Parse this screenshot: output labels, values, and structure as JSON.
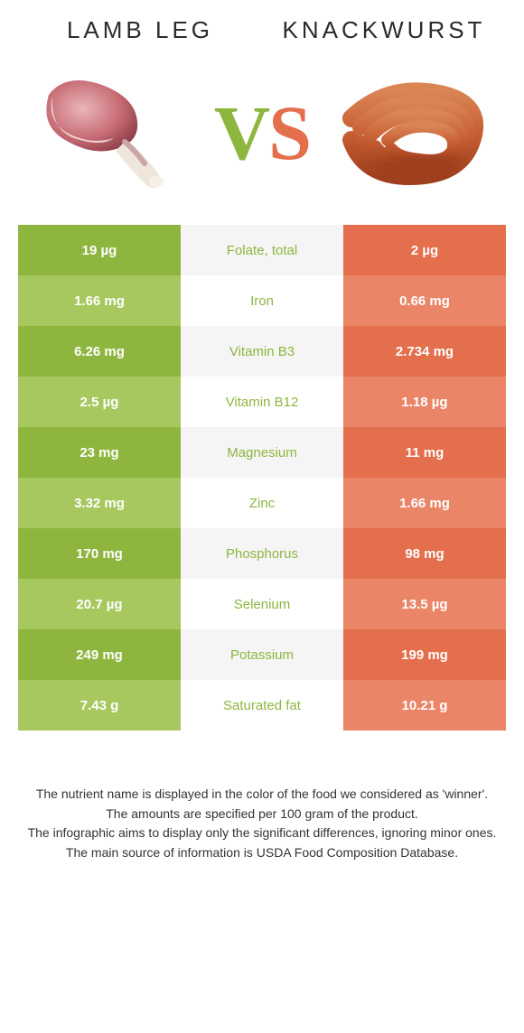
{
  "colors": {
    "food1": "#8eb63f",
    "food1_light": "#a6c85f",
    "food2": "#e36f4d",
    "food2_light": "#ea8567",
    "mid_a": "#f5f5f5",
    "mid_b": "#ffffff",
    "mid_text": "#8eb63f",
    "mid_text_alt": "#e36f4d",
    "title": "#2b2b2b",
    "body": "#333333"
  },
  "food1": {
    "name": "Lamb leg"
  },
  "food2": {
    "name": "Knackwurst"
  },
  "vs": {
    "v": "V",
    "s": "S"
  },
  "rows": [
    {
      "nutrient": "Folate, total",
      "left": "19 µg",
      "right": "2 µg",
      "winner": "food1"
    },
    {
      "nutrient": "Iron",
      "left": "1.66 mg",
      "right": "0.66 mg",
      "winner": "food1"
    },
    {
      "nutrient": "Vitamin B3",
      "left": "6.26 mg",
      "right": "2.734 mg",
      "winner": "food1"
    },
    {
      "nutrient": "Vitamin B12",
      "left": "2.5 µg",
      "right": "1.18 µg",
      "winner": "food1"
    },
    {
      "nutrient": "Magnesium",
      "left": "23 mg",
      "right": "11 mg",
      "winner": "food1"
    },
    {
      "nutrient": "Zinc",
      "left": "3.32 mg",
      "right": "1.66 mg",
      "winner": "food1"
    },
    {
      "nutrient": "Phosphorus",
      "left": "170 mg",
      "right": "98 mg",
      "winner": "food1"
    },
    {
      "nutrient": "Selenium",
      "left": "20.7 µg",
      "right": "13.5 µg",
      "winner": "food1"
    },
    {
      "nutrient": "Potassium",
      "left": "249 mg",
      "right": "199 mg",
      "winner": "food1"
    },
    {
      "nutrient": "Saturated fat",
      "left": "7.43 g",
      "right": "10.21 g",
      "winner": "food1"
    }
  ],
  "footer": {
    "line1": "The nutrient name is displayed in the color of the food we considered as 'winner'.",
    "line2": "The amounts are specified per 100 gram of the product.",
    "line3": "The infographic aims to display only the significant differences, ignoring minor ones.",
    "line4": "The main source of information is USDA Food Composition Database."
  }
}
